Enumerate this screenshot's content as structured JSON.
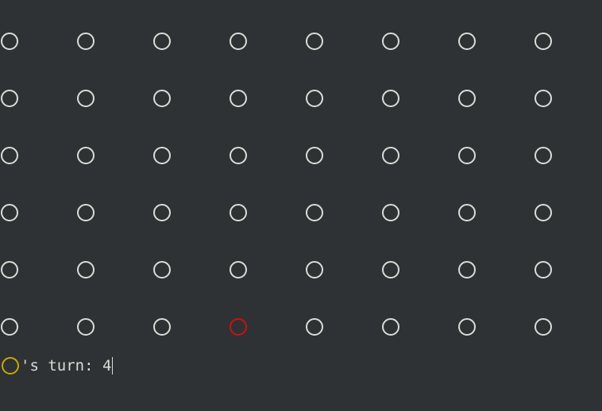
{
  "board": {
    "rows": 6,
    "cols": 8,
    "empty_color": "#dcdcd6",
    "pieces": [
      {
        "row": 6,
        "col": 4,
        "color": "#d01010"
      }
    ]
  },
  "status": {
    "current_player_color": "#c9a800",
    "turn_text": "'s turn: ",
    "input_value": "4"
  }
}
